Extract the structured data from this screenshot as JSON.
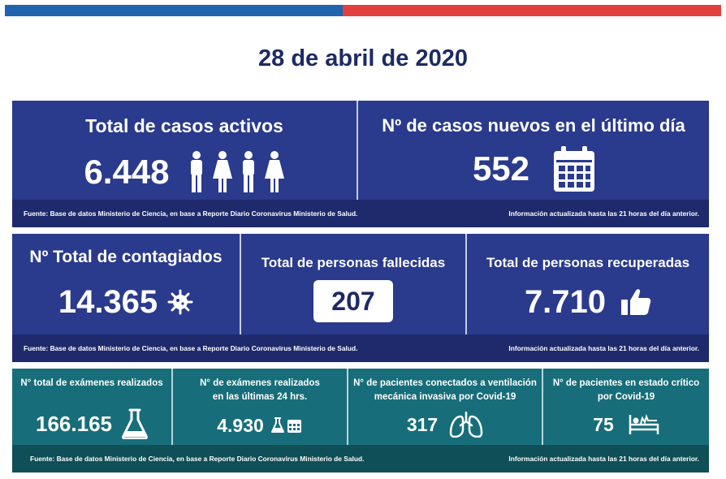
{
  "date": "28 de abril de 2020",
  "top": {
    "active": {
      "label": "Total de casos activos",
      "value": "6.448"
    },
    "new": {
      "label": "Nº de casos nuevos en el último día",
      "value": "552"
    },
    "source": "Fuente: Base de datos Ministerio de Ciencia, en base a Reporte Diario Coronavirus Ministerio de Salud.",
    "updated": "Información actualizada hasta las 21 horas  del día anterior."
  },
  "middle": {
    "total": {
      "label": "Nº Total de contagiados",
      "value": "14.365"
    },
    "deaths": {
      "label": "Total de personas fallecidas",
      "value": "207"
    },
    "recovered": {
      "label": "Total de personas recuperadas",
      "value": "7.710"
    },
    "source": "Fuente: Base de datos Ministerio de Ciencia, en base a Reporte Diario Coronavirus Ministerio de Salud.",
    "updated": "Información actualizada hasta las 21 horas  del día anterior."
  },
  "bottom": {
    "exams": {
      "label": "N° total de exámenes realizados",
      "value": "166.165"
    },
    "exams24": {
      "label_1": "N° de exámenes realizados",
      "label_2": "en las últimas 24 hrs.",
      "value": "4.930"
    },
    "ventilation": {
      "label_1": "N° de pacientes conectados a ventilación",
      "label_2": "mecánica invasiva por Covid-19",
      "value": "317"
    },
    "critical": {
      "label_1": "N° de pacientes en estado crítico",
      "label_2": "por Covid-19",
      "value": "75"
    },
    "source": "Fuente: Base de datos Ministerio de Ciencia, en base a Reporte Diario Coronavirus Ministerio de Salud.",
    "updated": "Información actualizada hasta las 21 horas  del día anterior."
  },
  "colors": {
    "navy": "#2a3a8c",
    "teal": "#176e7a",
    "blue_stripe": "#1f64ad",
    "red_stripe": "#e1403f"
  },
  "icons": [
    "people-icon",
    "calendar-icon",
    "virus-icon",
    "thumbs-up-icon",
    "flask-icon",
    "flask-calendar-icon",
    "lungs-icon",
    "hospital-bed-icon"
  ]
}
